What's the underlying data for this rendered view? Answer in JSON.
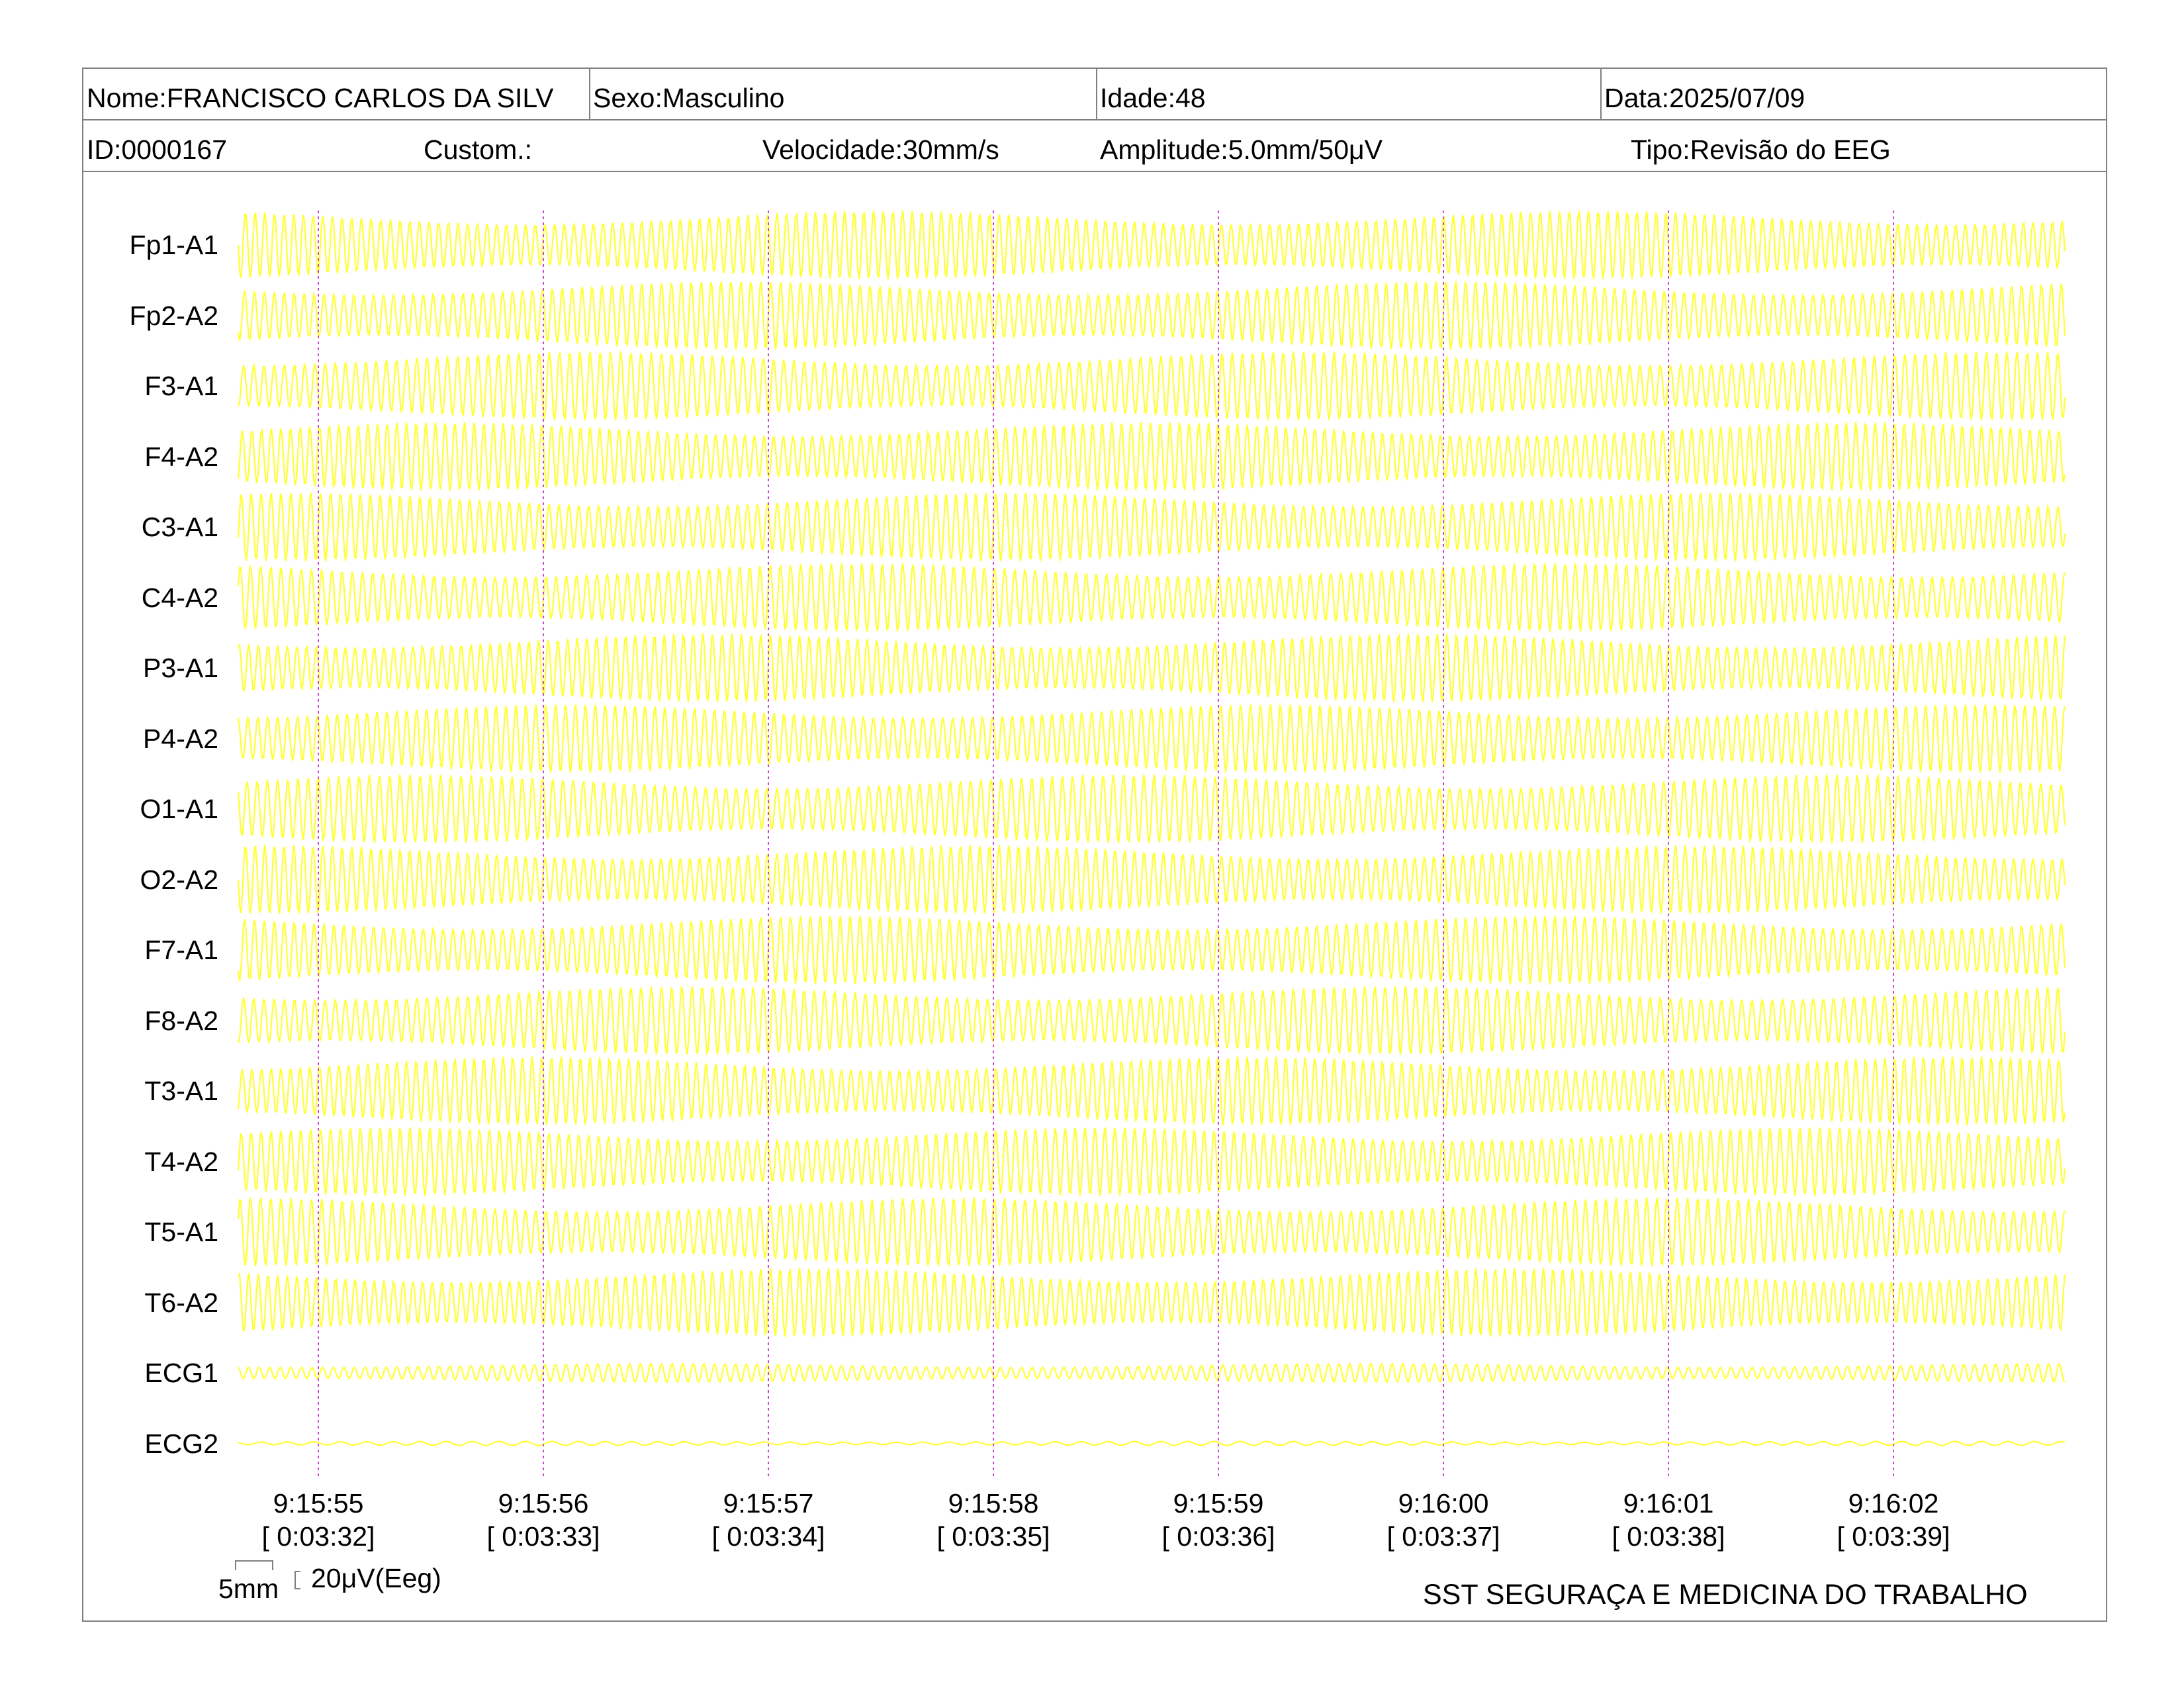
{
  "header": {
    "row1": {
      "nome": "Nome:FRANCISCO CARLOS DA SILV",
      "sexo": "Sexo:Masculino",
      "idade": "Idade:48",
      "data": "Data:2025/07/09"
    },
    "row2": {
      "id": "ID:0000167",
      "custom": "Custom.:",
      "velocidade": "Velocidade:30mm/s",
      "amplitude": "Amplitude:5.0mm/50μV",
      "tipo": "Tipo:Revisão do EEG"
    }
  },
  "channels": [
    "Fp1-A1",
    "Fp2-A2",
    "F3-A1",
    "F4-A2",
    "C3-A1",
    "C4-A2",
    "P3-A1",
    "P4-A2",
    "O1-A1",
    "O2-A2",
    "F7-A1",
    "F8-A2",
    "T3-A1",
    "T4-A2",
    "T5-A1",
    "T6-A2",
    "ECG1",
    "ECG2"
  ],
  "time_marks": [
    {
      "clock": "9:15:55",
      "elapsed": "[ 0:03:32]"
    },
    {
      "clock": "9:15:56",
      "elapsed": "[ 0:03:33]"
    },
    {
      "clock": "9:15:57",
      "elapsed": "[ 0:03:34]"
    },
    {
      "clock": "9:15:58",
      "elapsed": "[ 0:03:35]"
    },
    {
      "clock": "9:15:59",
      "elapsed": "[ 0:03:36]"
    },
    {
      "clock": "9:16:00",
      "elapsed": "[ 0:03:37]"
    },
    {
      "clock": "9:16:01",
      "elapsed": "[ 0:03:38]"
    },
    {
      "clock": "9:16:02",
      "elapsed": "[ 0:03:39]"
    }
  ],
  "scale": {
    "time_label": "5mm",
    "amp_label": "20μV(Eeg)"
  },
  "footer": {
    "organization": "SST SEGURAÇA E MEDICINA DO TRABALHO"
  },
  "colors": {
    "trace": "#ffff33",
    "marker": "#cc44cc",
    "border": "#808080"
  }
}
